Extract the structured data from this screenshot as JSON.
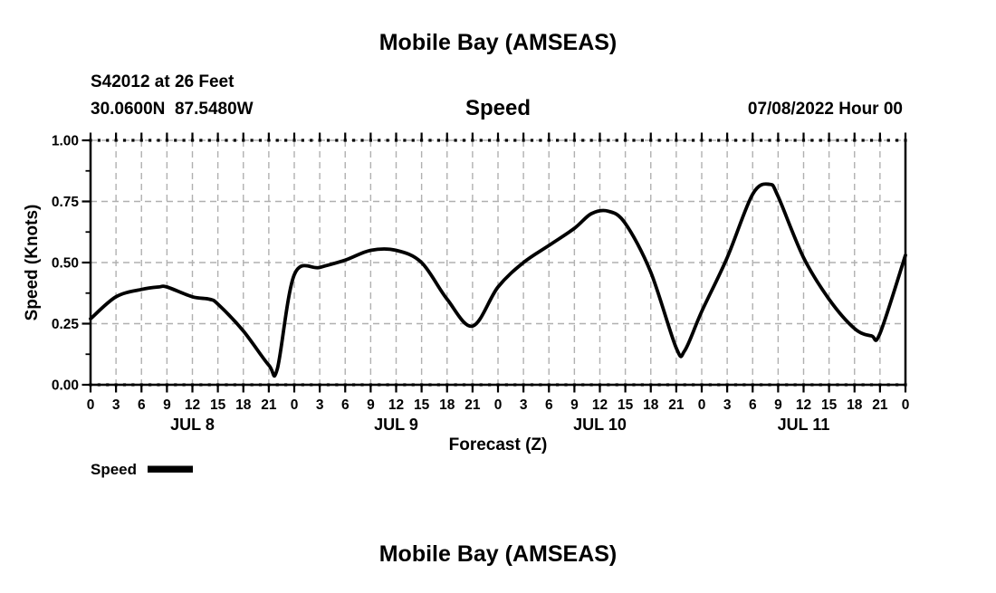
{
  "chart_data": {
    "type": "line",
    "title": "Mobile Bay (AMSEAS)",
    "panel_title": "Speed",
    "station": "S42012 at 26 Feet",
    "coordinates": "30.0600N  87.5480W",
    "model_run": "07/08/2022 Hour 00",
    "xlabel": "Forecast (Z)",
    "ylabel": "Speed (Knots)",
    "xlim_hours": [
      0,
      96
    ],
    "ylim": [
      0.0,
      1.0
    ],
    "grid": {
      "style": "dashed",
      "color": "#b0b0b0",
      "vertical_every_hours": 3,
      "horizontal_values": [
        0.25,
        0.5,
        0.75,
        1.0
      ]
    },
    "y_ticks": [
      {
        "value": 0.0,
        "label": "0.00"
      },
      {
        "value": 0.25,
        "label": "0.25"
      },
      {
        "value": 0.5,
        "label": "0.50"
      },
      {
        "value": 0.75,
        "label": "0.75"
      },
      {
        "value": 1.0,
        "label": "1.00"
      }
    ],
    "y_minor_ticks": [
      0.125,
      0.375,
      0.625,
      0.875
    ],
    "x_minor_tick_every_hours": 1,
    "x_ticks": [
      {
        "hour": 0,
        "label": "0"
      },
      {
        "hour": 3,
        "label": "3"
      },
      {
        "hour": 6,
        "label": "6"
      },
      {
        "hour": 9,
        "label": "9"
      },
      {
        "hour": 12,
        "label": "12"
      },
      {
        "hour": 15,
        "label": "15"
      },
      {
        "hour": 18,
        "label": "18"
      },
      {
        "hour": 21,
        "label": "21"
      },
      {
        "hour": 24,
        "label": "0"
      },
      {
        "hour": 27,
        "label": "3"
      },
      {
        "hour": 30,
        "label": "6"
      },
      {
        "hour": 33,
        "label": "9"
      },
      {
        "hour": 36,
        "label": "12"
      },
      {
        "hour": 39,
        "label": "15"
      },
      {
        "hour": 42,
        "label": "18"
      },
      {
        "hour": 45,
        "label": "21"
      },
      {
        "hour": 48,
        "label": "0"
      },
      {
        "hour": 51,
        "label": "3"
      },
      {
        "hour": 54,
        "label": "6"
      },
      {
        "hour": 57,
        "label": "9"
      },
      {
        "hour": 60,
        "label": "12"
      },
      {
        "hour": 63,
        "label": "15"
      },
      {
        "hour": 66,
        "label": "18"
      },
      {
        "hour": 69,
        "label": "21"
      },
      {
        "hour": 72,
        "label": "0"
      },
      {
        "hour": 75,
        "label": "3"
      },
      {
        "hour": 78,
        "label": "6"
      },
      {
        "hour": 81,
        "label": "9"
      },
      {
        "hour": 84,
        "label": "12"
      },
      {
        "hour": 87,
        "label": "15"
      },
      {
        "hour": 90,
        "label": "18"
      },
      {
        "hour": 93,
        "label": "21"
      },
      {
        "hour": 96,
        "label": "0"
      }
    ],
    "day_labels": [
      {
        "hour": 12,
        "label": "JUL 8"
      },
      {
        "hour": 36,
        "label": "JUL 9"
      },
      {
        "hour": 60,
        "label": "JUL 10"
      },
      {
        "hour": 84,
        "label": "JUL 11"
      }
    ],
    "legend": {
      "position": "bottom-left",
      "entries": [
        {
          "label": "Speed",
          "color": "#000000"
        }
      ]
    },
    "series": [
      {
        "name": "Speed",
        "color": "#000000",
        "points": [
          [
            0,
            0.27
          ],
          [
            3,
            0.36
          ],
          [
            6,
            0.39
          ],
          [
            8,
            0.4
          ],
          [
            9,
            0.4
          ],
          [
            12,
            0.36
          ],
          [
            14,
            0.35
          ],
          [
            15,
            0.33
          ],
          [
            18,
            0.22
          ],
          [
            21,
            0.08
          ],
          [
            22,
            0.065
          ],
          [
            24,
            0.45
          ],
          [
            27,
            0.48
          ],
          [
            30,
            0.51
          ],
          [
            33,
            0.55
          ],
          [
            36,
            0.55
          ],
          [
            39,
            0.5
          ],
          [
            42,
            0.35
          ],
          [
            45,
            0.24
          ],
          [
            48,
            0.4
          ],
          [
            51,
            0.5
          ],
          [
            54,
            0.57
          ],
          [
            57,
            0.64
          ],
          [
            59,
            0.7
          ],
          [
            61,
            0.71
          ],
          [
            63,
            0.66
          ],
          [
            66,
            0.46
          ],
          [
            69,
            0.15
          ],
          [
            70,
            0.14
          ],
          [
            72,
            0.3
          ],
          [
            75,
            0.52
          ],
          [
            78,
            0.78
          ],
          [
            80,
            0.82
          ],
          [
            81,
            0.77
          ],
          [
            84,
            0.52
          ],
          [
            87,
            0.35
          ],
          [
            90,
            0.23
          ],
          [
            92,
            0.2
          ],
          [
            93,
            0.21
          ],
          [
            96,
            0.53
          ]
        ]
      }
    ]
  },
  "next_chart": {
    "title": "Mobile Bay (AMSEAS)"
  }
}
